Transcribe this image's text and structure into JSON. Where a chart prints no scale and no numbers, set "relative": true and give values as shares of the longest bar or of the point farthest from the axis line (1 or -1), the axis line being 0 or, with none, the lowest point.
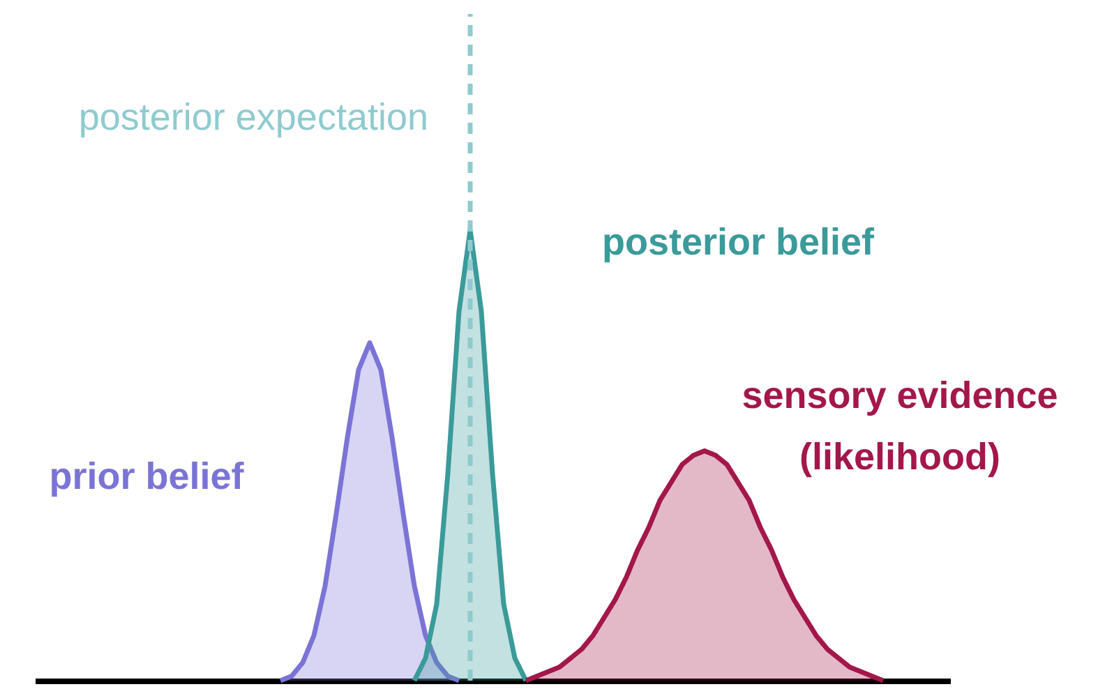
{
  "chart_data": {
    "type": "area",
    "relative": true,
    "grid": false,
    "line_style": "solid",
    "tick_labels": false,
    "annotations": [
      "posterior expectation"
    ],
    "categories": [
      null,
      null,
      null,
      null,
      null,
      null,
      null,
      null,
      null,
      null,
      null,
      null,
      null,
      null,
      null,
      null,
      null,
      null,
      null,
      null,
      null,
      null,
      null,
      null,
      null,
      null,
      null,
      null,
      null,
      null,
      null,
      null,
      null,
      null,
      null,
      null,
      null,
      null,
      null,
      null,
      null,
      null,
      null,
      null,
      null,
      null,
      null,
      null,
      null,
      null,
      null,
      null,
      null,
      null,
      null,
      null,
      null,
      null,
      null,
      null,
      null,
      null,
      null,
      null,
      null,
      null,
      null,
      null,
      null,
      null,
      null,
      null,
      null,
      null,
      null,
      null,
      null,
      null,
      null,
      null,
      null,
      null,
      null
    ],
    "series": [
      {
        "name": "prior belief",
        "color": "#7b74d6",
        "values": [
          null,
          null,
          null,
          null,
          null,
          null,
          null,
          null,
          null,
          null,
          null,
          null,
          null,
          null,
          null,
          null,
          null,
          null,
          null,
          null,
          null,
          null,
          0,
          0.01,
          0.04,
          0.1,
          0.21,
          0.37,
          0.54,
          0.69,
          0.75,
          0.69,
          0.54,
          0.37,
          0.21,
          0.1,
          0.04,
          0.01,
          0,
          null,
          null,
          null,
          null,
          null,
          null,
          null,
          null,
          null,
          null,
          null,
          null,
          null,
          null,
          null,
          null,
          null,
          null,
          null,
          null,
          null,
          null,
          null,
          null,
          null,
          null,
          null,
          null,
          null,
          null,
          null,
          null,
          null,
          null,
          null,
          null,
          null,
          null,
          null,
          null,
          null,
          null,
          null,
          null
        ]
      },
      {
        "name": "posterior belief",
        "color": "#3b9a9a",
        "values": [
          null,
          null,
          null,
          null,
          null,
          null,
          null,
          null,
          null,
          null,
          null,
          null,
          null,
          null,
          null,
          null,
          null,
          null,
          null,
          null,
          null,
          null,
          null,
          null,
          null,
          null,
          null,
          null,
          null,
          null,
          null,
          null,
          null,
          null,
          0,
          0.05,
          0.17,
          0.46,
          0.82,
          1,
          0.82,
          0.46,
          0.17,
          0.05,
          0,
          null,
          null,
          null,
          null,
          null,
          null,
          null,
          null,
          null,
          null,
          null,
          null,
          null,
          null,
          null,
          null,
          null,
          null,
          null,
          null,
          null,
          null,
          null,
          null,
          null,
          null,
          null,
          null,
          null,
          null,
          null,
          null,
          null,
          null,
          null,
          null,
          null,
          null
        ]
      },
      {
        "name": "sensory evidence\n(likelihood)",
        "color": "#a3174a",
        "values": [
          null,
          null,
          null,
          null,
          null,
          null,
          null,
          null,
          null,
          null,
          null,
          null,
          null,
          null,
          null,
          null,
          null,
          null,
          null,
          null,
          null,
          null,
          null,
          null,
          null,
          null,
          null,
          null,
          null,
          null,
          null,
          null,
          null,
          null,
          null,
          null,
          null,
          null,
          null,
          null,
          null,
          null,
          null,
          null,
          0,
          0.01,
          0.02,
          0.03,
          0.05,
          0.07,
          0.1,
          0.14,
          0.18,
          0.23,
          0.29,
          0.34,
          0.4,
          0.44,
          0.48,
          0.5,
          0.51,
          0.5,
          0.48,
          0.44,
          0.4,
          0.34,
          0.29,
          0.23,
          0.18,
          0.14,
          0.1,
          0.07,
          0.05,
          0.03,
          0.02,
          0.01,
          0,
          null,
          null,
          null,
          null,
          null,
          null
        ]
      }
    ]
  }
}
